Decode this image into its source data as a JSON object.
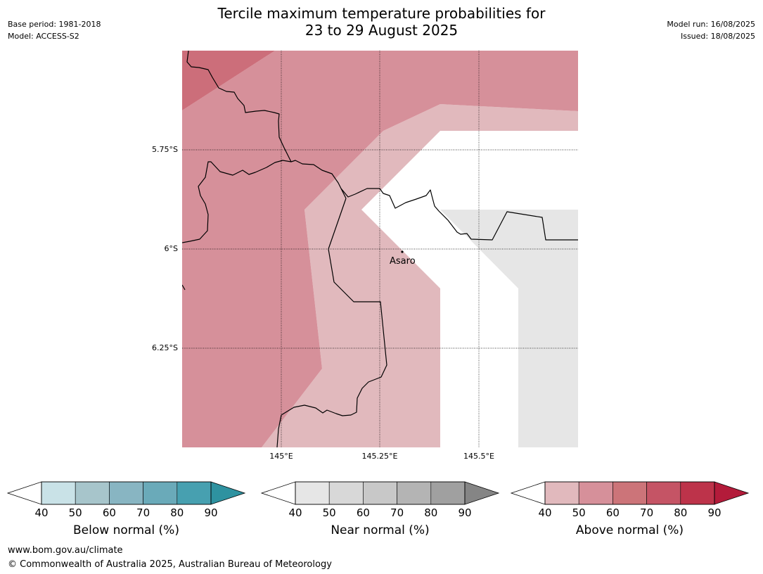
{
  "title": {
    "line1": "Tercile maximum temperature probabilities for",
    "line2": "23 to 29 August 2025"
  },
  "meta": {
    "base_period": "Base period: 1981-2018",
    "model": "Model: ACCESS-S2",
    "model_run": "Model run: 16/08/2025",
    "issued": "Issued: 18/08/2025"
  },
  "map": {
    "lat_labels": [
      "5.75°S",
      "6°S",
      "6.25°S"
    ],
    "lon_labels": [
      "145°E",
      "145.25°E",
      "145.5°E"
    ],
    "place": {
      "name": "Asaro"
    }
  },
  "colorbars": [
    {
      "title": "Below normal (%)",
      "ticks": [
        "40",
        "50",
        "60",
        "70",
        "80",
        "90"
      ],
      "colors": [
        "#c9e2e7",
        "#a7c5cb",
        "#88b5c2",
        "#6aaab9",
        "#47a0b0"
      ],
      "arrow_color": "#2e92a0"
    },
    {
      "title": "Near normal (%)",
      "ticks": [
        "40",
        "50",
        "60",
        "70",
        "80",
        "90"
      ],
      "colors": [
        "#e6e6e6",
        "#d8d8d8",
        "#c8c8c8",
        "#b4b4b4",
        "#a0a0a0"
      ],
      "arrow_color": "#858585"
    },
    {
      "title": "Above normal (%)",
      "ticks": [
        "40",
        "50",
        "60",
        "70",
        "80",
        "90"
      ],
      "colors": [
        "#e1b9bd",
        "#d6909a",
        "#cc7479",
        "#c55465",
        "#bd334a"
      ],
      "arrow_color": "#b31b3a"
    }
  ],
  "footer": {
    "url": "www.bom.gov.au/climate",
    "copyright": "© Commonwealth of Australia 2025, Australian Bureau of Meteorology"
  }
}
